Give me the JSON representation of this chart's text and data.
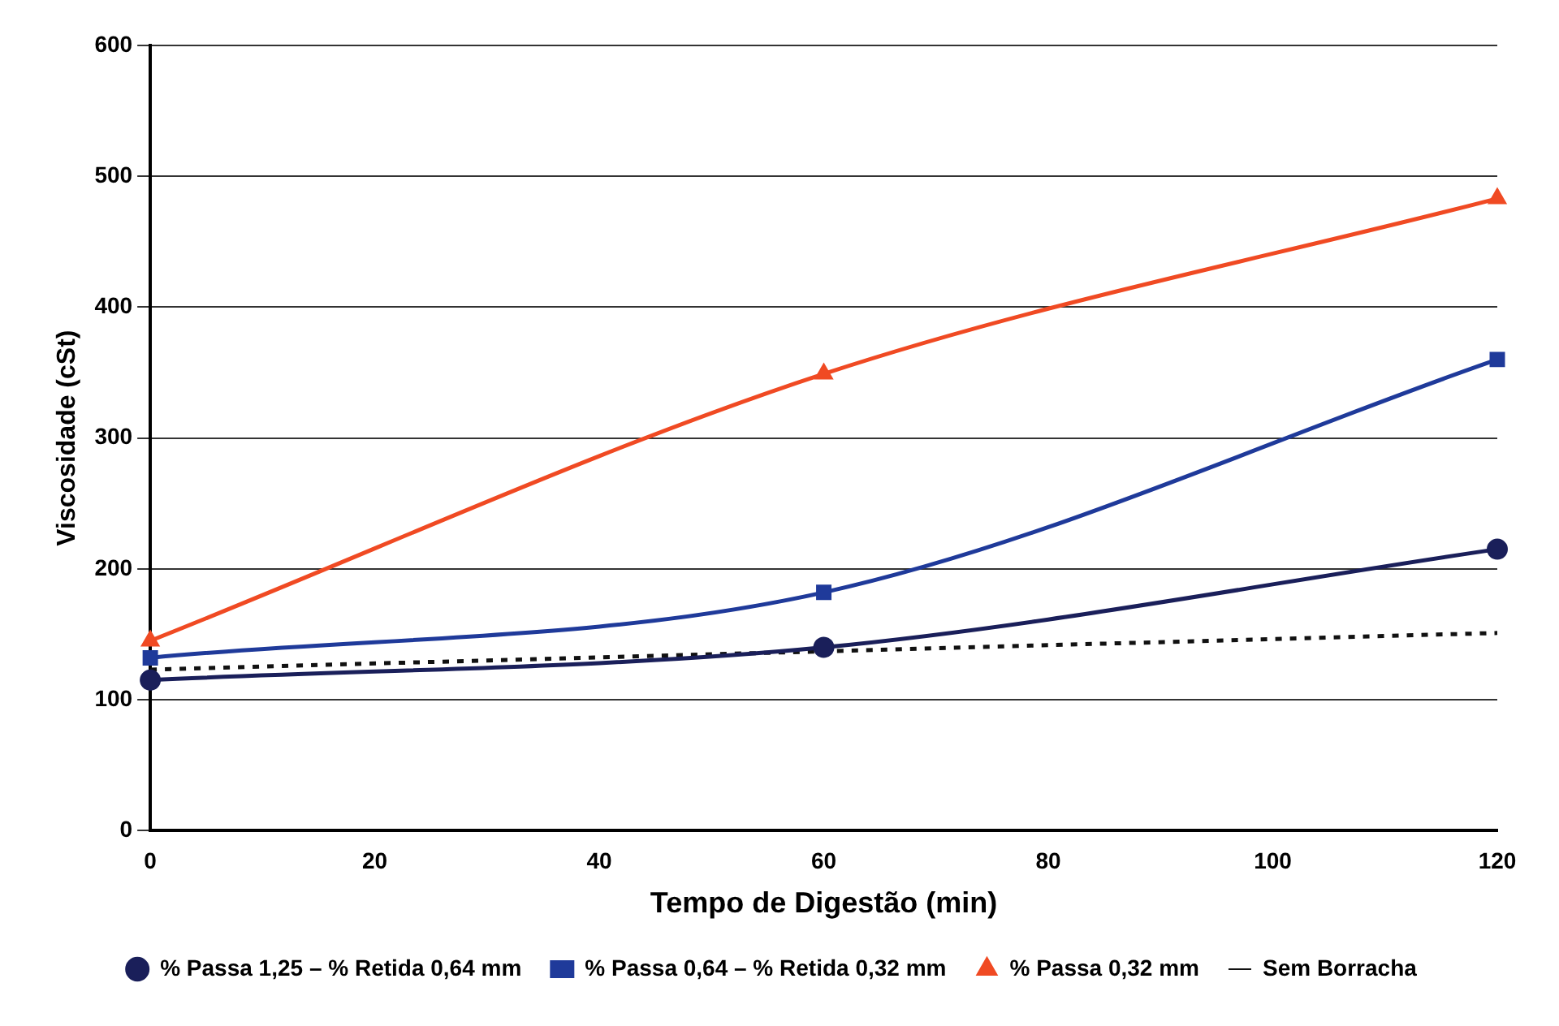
{
  "chart_data": {
    "type": "line",
    "xlabel": "Tempo de Digestão (min)",
    "ylabel": "Viscosidade (cSt)",
    "x": [
      0,
      60,
      120
    ],
    "xlim": [
      0,
      120
    ],
    "xticks": [
      0,
      20,
      40,
      60,
      80,
      100,
      120
    ],
    "ylim": [
      0,
      600
    ],
    "yticks": [
      0,
      100,
      200,
      300,
      400,
      500,
      600
    ],
    "grid": "y",
    "legend": "bottom",
    "series": [
      {
        "name": "% Passa 1,25 – % Retida 0,64 mm",
        "color": "#1a1f5a",
        "values": [
          115,
          140,
          215
        ],
        "marker": "circle",
        "line_style": "solid"
      },
      {
        "name": "% Passa 0,64 – % Retida 0,32 mm",
        "color": "#1f3a9a",
        "values": [
          132,
          182,
          360
        ],
        "marker": "square",
        "line_style": "solid"
      },
      {
        "name": "% Passa 0,32 mm",
        "color": "#f04a23",
        "values": [
          145,
          349,
          483
        ],
        "marker": "triangle",
        "line_style": "solid"
      },
      {
        "name": "Sem Borracha",
        "color": "#111111",
        "values": [
          123,
          151
        ],
        "x": [
          0,
          120
        ],
        "marker": "none",
        "line_style": "dotted"
      }
    ]
  }
}
